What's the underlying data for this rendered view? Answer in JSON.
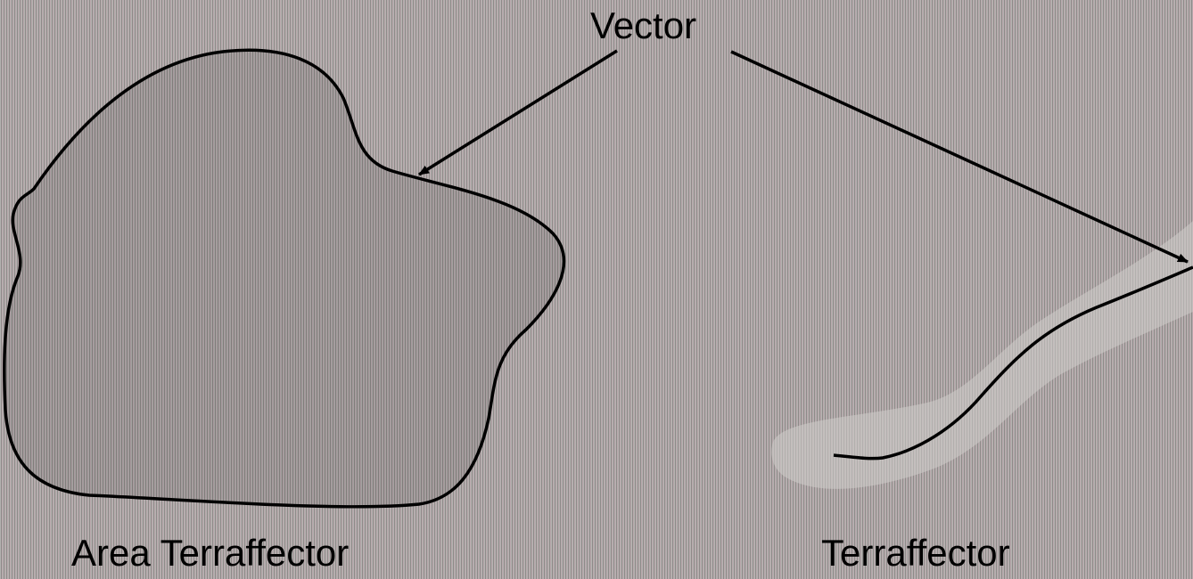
{
  "labels": {
    "vector": "Vector",
    "area_terraffector": "Area Terraffector",
    "terraffector": "Terraffector"
  },
  "colors": {
    "background": "#a9a7a5",
    "area_fill": "#9c9a98",
    "path_band": "#c9c7c5",
    "stroke": "#000000"
  }
}
